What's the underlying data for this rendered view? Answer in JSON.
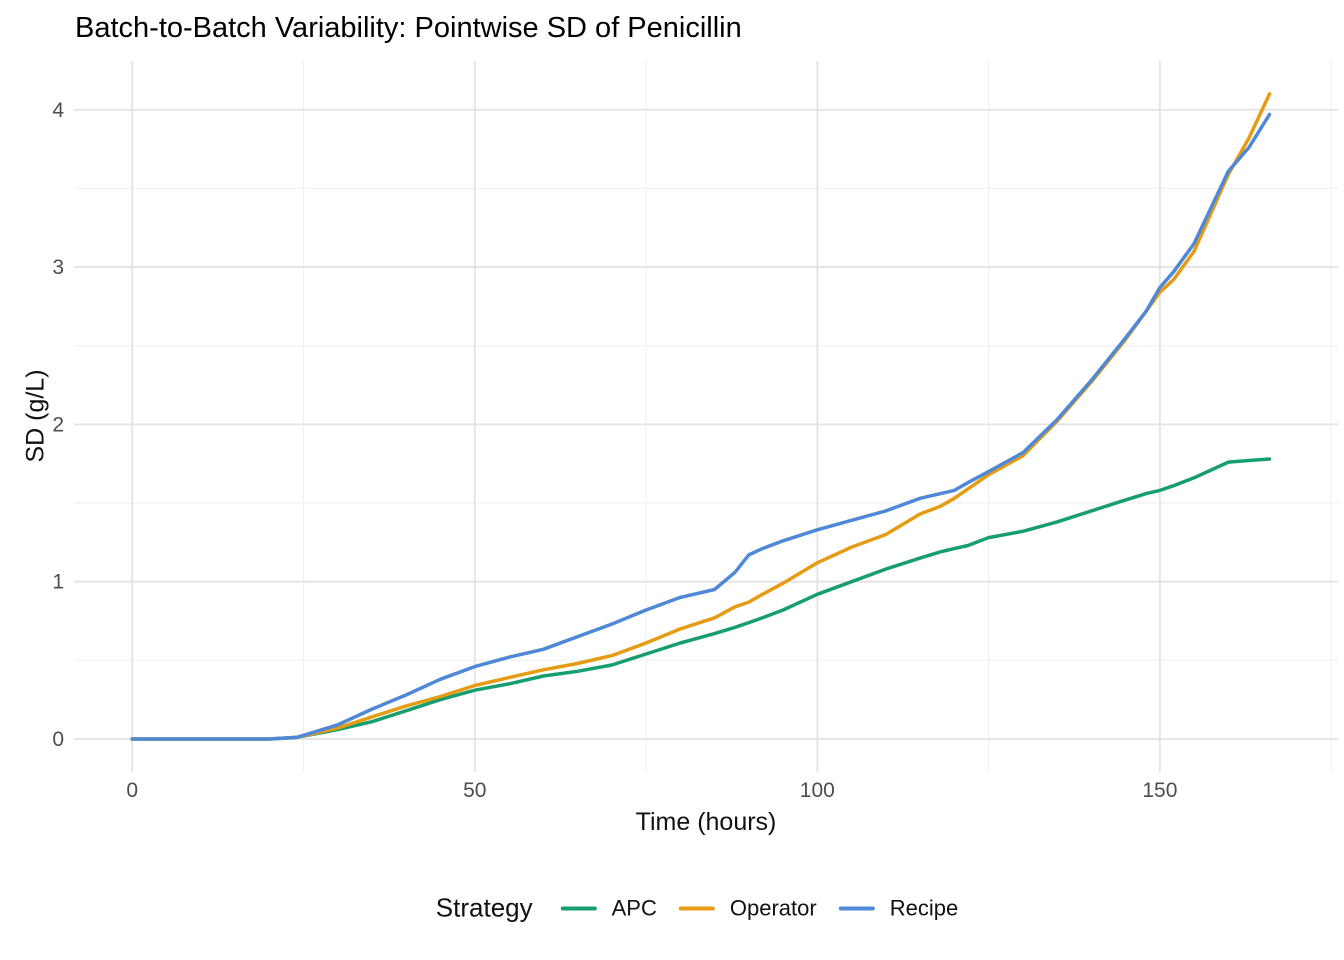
{
  "page": {
    "background": "#FFFFFF"
  },
  "chart_data": {
    "type": "line",
    "title": "Batch-to-Batch Variability: Pointwise SD of Penicillin",
    "xlabel": "Time (hours)",
    "ylabel": "SD (g/L)",
    "legend_title": "Strategy",
    "legend_position": "bottom",
    "grid": true,
    "x_ticks": [
      0,
      50,
      100,
      150
    ],
    "x_minor_ticks": [
      25,
      75,
      125,
      175
    ],
    "y_ticks": [
      0,
      1,
      2,
      3,
      4
    ],
    "y_minor_ticks": [
      0.5,
      1.5,
      2.5,
      3.5
    ],
    "xlim": [
      -8.5,
      176
    ],
    "ylim": [
      -0.21,
      4.31
    ],
    "x": [
      0,
      5,
      10,
      15,
      20,
      24,
      30,
      35,
      40,
      45,
      50,
      55,
      60,
      65,
      70,
      75,
      80,
      85,
      88,
      90,
      92,
      95,
      100,
      105,
      110,
      115,
      118,
      120,
      122,
      125,
      130,
      135,
      140,
      145,
      148,
      150,
      152,
      155,
      160,
      163,
      166
    ],
    "series": [
      {
        "name": "APC",
        "color": "#179E6F",
        "values": [
          0,
          0,
          0,
          0,
          0,
          0.01,
          0.06,
          0.11,
          0.18,
          0.25,
          0.31,
          0.35,
          0.4,
          0.43,
          0.47,
          0.54,
          0.61,
          0.67,
          0.71,
          0.74,
          0.77,
          0.82,
          0.92,
          1.0,
          1.08,
          1.15,
          1.19,
          1.21,
          1.23,
          1.28,
          1.32,
          1.38,
          1.45,
          1.52,
          1.56,
          1.58,
          1.61,
          1.66,
          1.76,
          1.77,
          1.78
        ]
      },
      {
        "name": "Operator",
        "color": "#E69C12",
        "values": [
          0,
          0,
          0,
          0,
          0,
          0.01,
          0.07,
          0.14,
          0.21,
          0.27,
          0.34,
          0.39,
          0.44,
          0.48,
          0.53,
          0.61,
          0.7,
          0.77,
          0.84,
          0.87,
          0.92,
          0.99,
          1.12,
          1.22,
          1.3,
          1.43,
          1.48,
          1.53,
          1.59,
          1.68,
          1.8,
          2.02,
          2.27,
          2.54,
          2.72,
          2.84,
          2.92,
          3.1,
          3.59,
          3.82,
          4.1
        ]
      },
      {
        "name": "Recipe",
        "color": "#4F88D6",
        "values": [
          0,
          0,
          0,
          0,
          0,
          0.01,
          0.09,
          0.19,
          0.28,
          0.38,
          0.46,
          0.52,
          0.57,
          0.65,
          0.73,
          0.82,
          0.9,
          0.95,
          1.06,
          1.17,
          1.21,
          1.26,
          1.33,
          1.39,
          1.45,
          1.53,
          1.56,
          1.58,
          1.63,
          1.7,
          1.82,
          2.03,
          2.28,
          2.55,
          2.72,
          2.87,
          2.97,
          3.15,
          3.61,
          3.76,
          3.97
        ]
      }
    ],
    "theme": {
      "background": "#FFFFFF",
      "grid_major": "#E3E3E3",
      "grid_minor": "#F0F0F0",
      "tick_label_color": "#4D4D4D",
      "text_color": "#1A1A1A",
      "line_width": 3.5
    }
  }
}
